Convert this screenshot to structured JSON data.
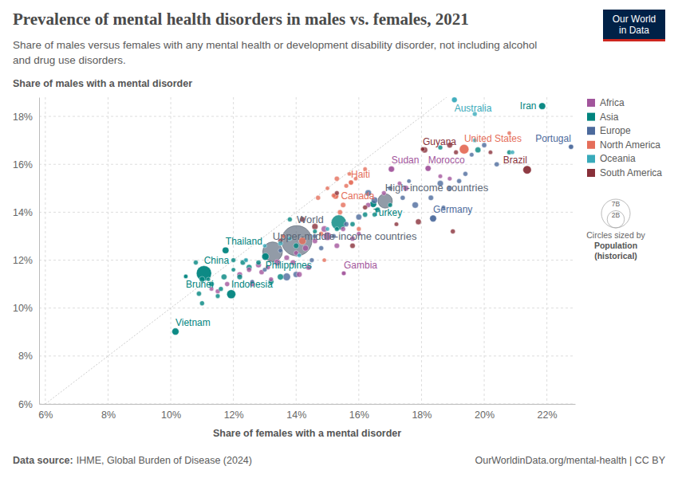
{
  "chart_data": {
    "type": "scatter",
    "title": "Prevalence of mental health disorders in males vs. females, 2021",
    "subtitle": [
      "Share of males versus females with any mental health or development disability disorder, not including alcohol",
      "and drug use disorders."
    ],
    "x_label": "Share of females with a mental disorder",
    "y_label": "Share of males with a mental disorder",
    "xlim": [
      5.8,
      22.9
    ],
    "ylim": [
      6,
      18.8
    ],
    "xticks": [
      {
        "value": 6,
        "label": "6%"
      },
      {
        "value": 8,
        "label": "8%"
      },
      {
        "value": 10,
        "label": "10%"
      },
      {
        "value": 12,
        "label": "12%"
      },
      {
        "value": 14,
        "label": "14%"
      },
      {
        "value": 16,
        "label": "16%"
      },
      {
        "value": 18,
        "label": "18%"
      },
      {
        "value": 20,
        "label": "20%"
      },
      {
        "value": 22,
        "label": "22%"
      }
    ],
    "yticks": [
      {
        "value": 6,
        "label": "6%"
      },
      {
        "value": 8,
        "label": "8%"
      },
      {
        "value": 10,
        "label": "10%"
      },
      {
        "value": 12,
        "label": "12%"
      },
      {
        "value": 14,
        "label": "14%"
      },
      {
        "value": 16,
        "label": "16%"
      },
      {
        "value": 18,
        "label": "18%"
      }
    ],
    "grid": true,
    "legend": "right",
    "series": [
      {
        "name": "Africa",
        "color": "#a2559c",
        "x": [
          17.04,
          18.21,
          15.52,
          12.2,
          12.5,
          12.8,
          13.1,
          13.4,
          13.7,
          14.0,
          14.3,
          14.6,
          15.0,
          13.2,
          12.9,
          11.3,
          11.5,
          11.8,
          14.1,
          14.4,
          15.3,
          16.0,
          16.3,
          16.8,
          17.5,
          18.6,
          18.9,
          17.3,
          15.8,
          14.9,
          13.9,
          15.5,
          12.6
        ],
        "y": [
          15.8,
          15.83,
          11.45,
          11.4,
          11.6,
          11.8,
          11.7,
          11.9,
          12.1,
          12.3,
          12.5,
          12.8,
          13.0,
          11.2,
          11.5,
          10.8,
          10.7,
          11.0,
          11.4,
          11.7,
          12.6,
          13.1,
          14.3,
          14.8,
          15.0,
          15.5,
          15.4,
          15.2,
          12.9,
          13.3,
          11.9,
          13.3,
          11.0
        ],
        "sizes": [
          46,
          37,
          2.6,
          25,
          12,
          30,
          8,
          60,
          20,
          5,
          45,
          17,
          213,
          3,
          14,
          1.5,
          6,
          9,
          28,
          33,
          18,
          2,
          13,
          4,
          35,
          1.3,
          2.1,
          0.9,
          11,
          56,
          22,
          7,
          16
        ],
        "labels": [
          "Sudan",
          "Morocco",
          "Gambia",
          null,
          null,
          null,
          null,
          null,
          null,
          null,
          null,
          null,
          null,
          null,
          null,
          null,
          null,
          null,
          null,
          null,
          null,
          null,
          null,
          null,
          null,
          null,
          null,
          null,
          null,
          null,
          null,
          null,
          null
        ]
      },
      {
        "name": "Asia",
        "color": "#00847e",
        "x": [
          21.85,
          16.46,
          11.75,
          11.06,
          13.02,
          10.48,
          11.93,
          10.15,
          15.36,
          10.8,
          11.0,
          11.3,
          11.5,
          11.0,
          10.9,
          11.7,
          12.0,
          12.3,
          12.2,
          12.5,
          12.0,
          12.8,
          13.2,
          13.5,
          13.8,
          14.6,
          15.3,
          15.8,
          16.2,
          16.6,
          17.0,
          18.6,
          19.8,
          20.8,
          11.2,
          11.6,
          12.4,
          14.0,
          16.5
        ],
        "y": [
          18.43,
          14.34,
          12.41,
          11.45,
          12.15,
          11.32,
          10.58,
          9.02,
          13.57,
          11.9,
          11.2,
          11.0,
          10.5,
          10.2,
          10.6,
          11.3,
          11.6,
          11.9,
          11.3,
          11.7,
          12.0,
          11.9,
          11.1,
          11.3,
          13.7,
          13.2,
          13.3,
          13.5,
          13.9,
          14.1,
          14.3,
          16.7,
          16.6,
          16.5,
          11.2,
          10.8,
          12.0,
          12.6,
          13.9
        ],
        "sizes": [
          88,
          85,
          72,
          1426,
          114,
          0.45,
          274,
          98,
          1408,
          5,
          34,
          17,
          2.8,
          7,
          9,
          33,
          0.5,
          17,
          23,
          31,
          4.3,
          10,
          26,
          50,
          5.5,
          1.5,
          4.3,
          9.4,
          10,
          19,
          3.7,
          4.5,
          35,
          4.8,
          0.4,
          6,
          3.4,
          24,
          2.7
        ],
        "labels": [
          "Iran",
          "Turkey",
          "Thailand",
          "China",
          "Philippines",
          "Brunei",
          "Indonesia",
          "Vietnam",
          null,
          null,
          null,
          null,
          null,
          null,
          null,
          null,
          null,
          null,
          null,
          null,
          null,
          null,
          null,
          null,
          null,
          null,
          null,
          null,
          null,
          null,
          null,
          null,
          null,
          null,
          null,
          null,
          null,
          null,
          null
        ]
      },
      {
        "name": "Europe",
        "color": "#4c6a9c",
        "x": [
          22.77,
          18.37,
          14.6,
          14.8,
          15.2,
          15.6,
          16.0,
          16.5,
          17.0,
          17.8,
          18.3,
          18.6,
          18.9,
          19.2,
          19.6,
          20.4,
          20.0,
          13.7,
          14.0,
          14.5,
          17.4,
          18.7,
          16.3,
          12.6,
          13.0,
          19.4,
          17.6,
          13.5
        ],
        "y": [
          16.73,
          13.74,
          13.0,
          12.5,
          13.0,
          13.5,
          13.8,
          14.5,
          15.0,
          14.3,
          14.6,
          15.2,
          15.0,
          15.3,
          16.4,
          16.0,
          16.8,
          11.3,
          11.4,
          12.0,
          14.6,
          14.2,
          14.8,
          11.1,
          11.6,
          15.6,
          15.3,
          12.4
        ],
        "sizes": [
          10,
          83,
          2.8,
          6.9,
          4,
          9.7,
          38,
          67,
          5.4,
          60,
          17,
          47,
          11,
          5.8,
          1.9,
          9,
          10,
          143,
          44,
          3.8,
          8.7,
          0.6,
          65,
          0.6,
          2.1,
          5.5,
          0.4,
          1.8
        ],
        "labels": [
          "Portugal",
          "Germany",
          null,
          null,
          null,
          null,
          null,
          null,
          null,
          null,
          null,
          null,
          null,
          null,
          null,
          null,
          null,
          null,
          null,
          null,
          null,
          null,
          null,
          null,
          null,
          null,
          null,
          null
        ]
      },
      {
        "name": "North America",
        "color": "#e56e5a",
        "x": [
          19.36,
          15.75,
          15.26,
          15.0,
          15.3,
          15.6,
          15.9,
          16.2,
          14.7,
          15.2,
          15.5,
          14.8,
          14.2,
          14.9,
          16.0,
          20.8,
          15.7,
          15.4,
          13.6
        ],
        "y": [
          16.63,
          15.24,
          14.67,
          15.0,
          15.4,
          15.1,
          15.4,
          15.8,
          14.6,
          14.7,
          14.3,
          13.1,
          12.8,
          12.0,
          13.3,
          17.3,
          15.6,
          14.0,
          13.0
        ],
        "sizes": [
          337,
          11.5,
          38,
          0.3,
          11,
          2.8,
          0.1,
          0.4,
          6.3,
          5.2,
          17,
          4.4,
          127,
          0.1,
          3.1,
          0.04,
          0.1,
          10.5,
          0.4
        ],
        "labels": [
          "United States",
          "Haiti",
          "Canada",
          null,
          null,
          null,
          null,
          null,
          null,
          null,
          null,
          null,
          null,
          null,
          null,
          null,
          null,
          null,
          null
        ]
      },
      {
        "name": "Oceania",
        "color": "#38aaba",
        "x": [
          19.05,
          19.7,
          20.9,
          13.5,
          13.8,
          14.1,
          15.0,
          12.4,
          13.0,
          19.7
        ],
        "y": [
          18.69,
          18.1,
          16.5,
          12.7,
          12.9,
          12.2,
          13.3,
          12.0,
          12.6,
          17.0
        ],
        "sizes": [
          26,
          5.1,
          0.9,
          9.3,
          0.3,
          0.7,
          0.2,
          0.1,
          0.1,
          0.2
        ],
        "labels": [
          "Australia",
          null,
          null,
          null,
          null,
          null,
          null,
          null,
          null,
          null
        ]
      },
      {
        "name": "South America",
        "color": "#883039",
        "x": [
          18.04,
          21.37,
          13.5,
          14.2,
          14.6,
          15.3,
          16.2,
          17.9,
          18.1,
          18.9,
          19.0,
          19.1,
          20.2,
          15.8,
          17.2
        ],
        "y": [
          16.63,
          15.77,
          12.8,
          13.7,
          13.4,
          14.8,
          14.2,
          13.6,
          16.6,
          16.8,
          13.2,
          16.5,
          16.5,
          12.6,
          13.5
        ],
        "sizes": [
          0.8,
          214,
          12,
          19,
          51,
          3.4,
          6.7,
          33,
          45,
          28,
          7,
          3.4,
          0.6,
          18,
          1.2
        ],
        "labels": [
          "Guyana",
          "Brazil",
          null,
          null,
          null,
          null,
          null,
          null,
          null,
          null,
          null,
          null,
          null,
          null,
          null
        ]
      }
    ],
    "groups": {
      "color": "#6e7a8a",
      "x": [
        14.02,
        13.25,
        16.84
      ],
      "y": [
        12.81,
        12.35,
        14.47
      ],
      "sizes": [
        7950,
        2840,
        1240
      ],
      "labels": [
        "World",
        "Upper-middle-income countries",
        "High-income countries"
      ]
    },
    "size_legend": {
      "title": "Circles sized by",
      "variable": "Population",
      "note": "(historical)",
      "values": [
        {
          "value": 7000,
          "label": "7B"
        },
        {
          "value": 2000,
          "label": "2B"
        }
      ]
    },
    "source_label": "Data source:",
    "source": "IHME, Global Burden of Disease (2024)",
    "url": "OurWorldinData.org/mental-health | CC BY",
    "logo": [
      "Our World",
      "in Data"
    ]
  }
}
